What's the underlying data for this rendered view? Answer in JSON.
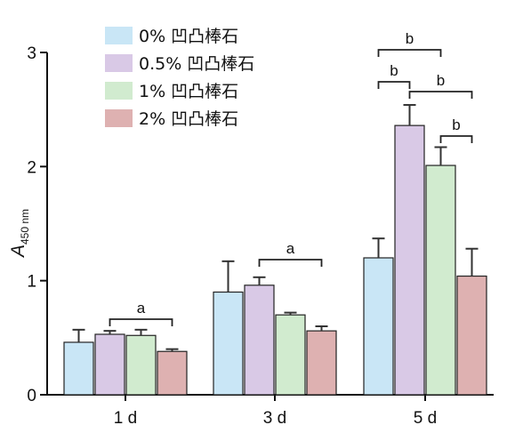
{
  "chart_data": {
    "type": "bar",
    "categories": [
      "1 d",
      "3 d",
      "5 d"
    ],
    "series": [
      {
        "name": "0% 凹凸棒石",
        "color": "#c9e6f6",
        "values": [
          0.46,
          0.9,
          1.2
        ],
        "errors": [
          0.11,
          0.27,
          0.17
        ]
      },
      {
        "name": "0.5% 凹凸棒石",
        "color": "#d9c9e6",
        "values": [
          0.53,
          0.96,
          2.36
        ],
        "errors": [
          0.03,
          0.07,
          0.18
        ]
      },
      {
        "name": "1% 凹凸棒石",
        "color": "#d1ebcf",
        "values": [
          0.52,
          0.7,
          2.01
        ],
        "errors": [
          0.05,
          0.02,
          0.16
        ]
      },
      {
        "name": "2% 凹凸棒石",
        "color": "#deb1b1",
        "values": [
          0.38,
          0.56,
          1.04
        ],
        "errors": [
          0.02,
          0.04,
          0.24
        ]
      }
    ],
    "ylabel_main": "A",
    "ylabel_sub": "450 nm",
    "ylim": [
      0,
      3
    ],
    "yticks": [
      "0",
      "1",
      "2",
      "3"
    ],
    "grid": false,
    "legend_position": "top-left",
    "annotations": [
      {
        "label": "a",
        "group": 0,
        "from_series": 1,
        "to_series": 3
      },
      {
        "label": "a",
        "group": 1,
        "from_series": 1,
        "to_series": 3
      },
      {
        "label": "b",
        "group": 2,
        "from_series": 0,
        "to_series": 1
      },
      {
        "label": "b",
        "group": 2,
        "from_series": 0,
        "to_series": 2
      },
      {
        "label": "b",
        "group": 2,
        "from_series": 1,
        "to_series": 3
      },
      {
        "label": "b",
        "group": 2,
        "from_series": 2,
        "to_series": 3
      }
    ]
  }
}
